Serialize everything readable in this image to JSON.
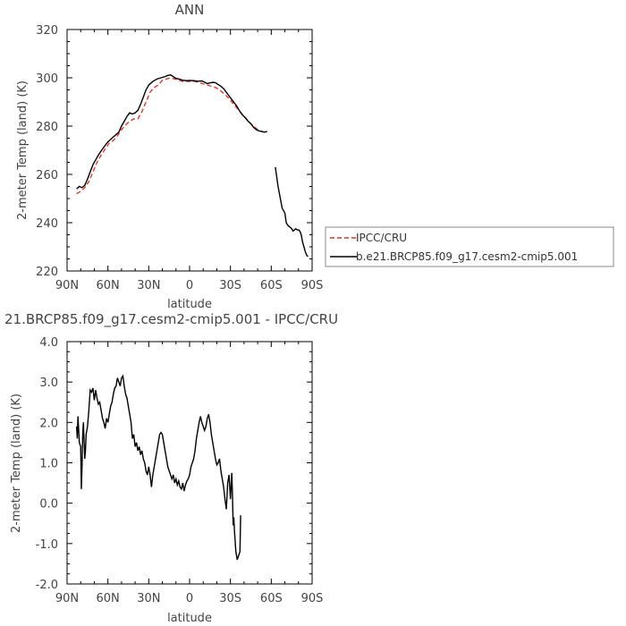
{
  "chart_data": [
    {
      "type": "line",
      "title": "ANN",
      "xlabel": "latitude",
      "ylabel": "2-meter Temp (land) (K)",
      "xlim": [
        90,
        -90
      ],
      "ylim": [
        220,
        320
      ],
      "x_ticks": [
        90,
        60,
        30,
        0,
        -30,
        -60,
        -90
      ],
      "x_tick_labels": [
        "90N",
        "60N",
        "30N",
        "0",
        "30S",
        "60S",
        "90S"
      ],
      "y_ticks": [
        220,
        240,
        260,
        280,
        300,
        320
      ],
      "y_tick_labels": [
        "220",
        "240",
        "260",
        "280",
        "300",
        "320"
      ],
      "legend": {
        "placement": "right"
      },
      "series": [
        {
          "name": "IPCC/CRU",
          "color": "#e8322b",
          "dash": "dashed",
          "points": [
            [
              83,
              252
            ],
            [
              80,
              253
            ],
            [
              77,
              254.5
            ],
            [
              74,
              257
            ],
            [
              71,
              261
            ],
            [
              68,
              265
            ],
            [
              65,
              268
            ],
            [
              62,
              270.5
            ],
            [
              59,
              273
            ],
            [
              56,
              274
            ],
            [
              53,
              276
            ],
            [
              50,
              278.5
            ],
            [
              47,
              280.5
            ],
            [
              44,
              282
            ],
            [
              41,
              283
            ],
            [
              38,
              283
            ],
            [
              35,
              286
            ],
            [
              32,
              290
            ],
            [
              29,
              294
            ],
            [
              26,
              296
            ],
            [
              23,
              297
            ],
            [
              20,
              299
            ],
            [
              17,
              299.5
            ],
            [
              14,
              300
            ],
            [
              11,
              299.5
            ],
            [
              8,
              299
            ],
            [
              5,
              298.5
            ],
            [
              2,
              298.5
            ],
            [
              -1,
              298.5
            ],
            [
              -4,
              298.5
            ],
            [
              -7,
              298
            ],
            [
              -10,
              297.5
            ],
            [
              -13,
              297
            ],
            [
              -16,
              296.5
            ],
            [
              -19,
              296
            ],
            [
              -22,
              295
            ],
            [
              -25,
              293.5
            ],
            [
              -28,
              292
            ],
            [
              -31,
              290
            ],
            [
              -34,
              288
            ],
            [
              -37,
              286
            ],
            [
              -40,
              284
            ],
            [
              -43,
              282
            ],
            [
              -46,
              280.5
            ],
            [
              -49,
              279
            ],
            [
              -52,
              278
            ],
            [
              -54,
              277.5
            ]
          ]
        },
        {
          "name": "b.e21.BRCP85.f09_g17.cesm2-cmip5.001",
          "color": "#000000",
          "dash": "solid",
          "points": [
            [
              83,
              254
            ],
            [
              81,
              255
            ],
            [
              79,
              254.5
            ],
            [
              77,
              255.5
            ],
            [
              75,
              258
            ],
            [
              73,
              261
            ],
            [
              71,
              264
            ],
            [
              69,
              266
            ],
            [
              67,
              268
            ],
            [
              64,
              270.5
            ],
            [
              62,
              272
            ],
            [
              60,
              273.5
            ],
            [
              58,
              274.5
            ],
            [
              56,
              275.5
            ],
            [
              54,
              276.5
            ],
            [
              52,
              277.5
            ],
            [
              50,
              280
            ],
            [
              48,
              282
            ],
            [
              46,
              284
            ],
            [
              44,
              285.5
            ],
            [
              42,
              285
            ],
            [
              40,
              285.5
            ],
            [
              38,
              286.5
            ],
            [
              36,
              289
            ],
            [
              34,
              292
            ],
            [
              32,
              295
            ],
            [
              30,
              297
            ],
            [
              27,
              298.5
            ],
            [
              24,
              299.5
            ],
            [
              21,
              300
            ],
            [
              18,
              300.5
            ],
            [
              16,
              301
            ],
            [
              14,
              301.2
            ],
            [
              12,
              300.5
            ],
            [
              10,
              299.8
            ],
            [
              8,
              299.5
            ],
            [
              5,
              299
            ],
            [
              2,
              298.8
            ],
            [
              0,
              298.9
            ],
            [
              -3,
              298.8
            ],
            [
              -6,
              298.6
            ],
            [
              -9,
              298.7
            ],
            [
              -11,
              298.2
            ],
            [
              -13,
              297.6
            ],
            [
              -15,
              297.9
            ],
            [
              -17,
              298.1
            ],
            [
              -19,
              298
            ],
            [
              -21,
              297.2
            ],
            [
              -23,
              296.5
            ],
            [
              -25,
              295.5
            ],
            [
              -27,
              294
            ],
            [
              -29,
              292.5
            ],
            [
              -31,
              291
            ],
            [
              -33,
              289.5
            ],
            [
              -35,
              288
            ],
            [
              -37,
              286
            ],
            [
              -39,
              284.5
            ],
            [
              -41,
              283.5
            ],
            [
              -43,
              282
            ],
            [
              -45,
              281
            ],
            [
              -47,
              279.5
            ],
            [
              -49,
              278.5
            ],
            [
              -51,
              278
            ],
            [
              -53,
              277.8
            ],
            [
              -55,
              277.5
            ],
            [
              -57,
              277.8
            ]
          ]
        },
        {
          "name": "",
          "color": "#000000",
          "dash": "solid",
          "legend": false,
          "points": [
            [
              -63,
              263
            ],
            [
              -64,
              259
            ],
            [
              -65,
              255
            ],
            [
              -66,
              252
            ],
            [
              -67,
              249
            ],
            [
              -68,
              246
            ],
            [
              -69,
              245
            ],
            [
              -70,
              244
            ],
            [
              -71,
              240
            ],
            [
              -72,
              239
            ],
            [
              -73,
              238.5
            ],
            [
              -74,
              238
            ],
            [
              -75,
              237.5
            ],
            [
              -76,
              236.5
            ],
            [
              -77,
              237
            ],
            [
              -78,
              237.5
            ],
            [
              -79,
              237
            ],
            [
              -80,
              237
            ],
            [
              -81,
              236.5
            ],
            [
              -82,
              235
            ],
            [
              -83,
              232
            ],
            [
              -84,
              230
            ],
            [
              -85,
              228
            ],
            [
              -86,
              226.5
            ],
            [
              -87,
              226
            ]
          ]
        }
      ]
    },
    {
      "type": "line",
      "title": "21.BRCP85.f09_g17.cesm2-cmip5.001 - IPCC/CRU",
      "xlabel": "latitude",
      "ylabel": "2-meter Temp (land) (K)",
      "xlim": [
        90,
        -90
      ],
      "ylim": [
        -2.0,
        4.0
      ],
      "x_ticks": [
        90,
        60,
        30,
        0,
        -30,
        -60,
        -90
      ],
      "x_tick_labels": [
        "90N",
        "60N",
        "30N",
        "0",
        "30S",
        "60S",
        "90S"
      ],
      "y_ticks": [
        -2,
        -1,
        0,
        1,
        2,
        3,
        4
      ],
      "y_tick_labels": [
        "-2.0",
        "-1.0",
        "0.0",
        "1.0",
        "2.0",
        "3.0",
        "4.0"
      ],
      "series": [
        {
          "name": "",
          "color": "#000000",
          "dash": "solid",
          "points": [
            [
              83,
              1.9
            ],
            [
              82.5,
              1.6
            ],
            [
              82,
              2.15
            ],
            [
              81,
              1.5
            ],
            [
              80,
              1.4
            ],
            [
              79.5,
              0.35
            ],
            [
              79,
              0.9
            ],
            [
              78.5,
              1.7
            ],
            [
              78,
              2.0
            ],
            [
              77,
              1.1
            ],
            [
              76.5,
              1.3
            ],
            [
              76,
              1.7
            ],
            [
              75,
              1.9
            ],
            [
              74,
              2.3
            ],
            [
              73,
              2.8
            ],
            [
              72,
              2.75
            ],
            [
              71,
              2.85
            ],
            [
              70,
              2.55
            ],
            [
              69,
              2.8
            ],
            [
              68,
              2.6
            ],
            [
              67,
              2.45
            ],
            [
              66,
              2.5
            ],
            [
              65,
              2.3
            ],
            [
              64,
              2.1
            ],
            [
              63,
              2.0
            ],
            [
              62,
              1.85
            ],
            [
              61,
              2.1
            ],
            [
              60,
              2.0
            ],
            [
              59,
              2.2
            ],
            [
              58,
              2.4
            ],
            [
              57,
              2.5
            ],
            [
              56,
              2.7
            ],
            [
              55,
              2.85
            ],
            [
              54,
              2.9
            ],
            [
              53,
              3.1
            ],
            [
              52,
              3.0
            ],
            [
              51,
              2.9
            ],
            [
              50,
              3.1
            ],
            [
              49,
              3.15
            ],
            [
              48,
              2.9
            ],
            [
              47,
              2.7
            ],
            [
              46,
              2.6
            ],
            [
              45,
              2.4
            ],
            [
              44,
              2.2
            ],
            [
              43,
              2.0
            ],
            [
              42,
              1.6
            ],
            [
              41,
              1.7
            ],
            [
              40,
              1.4
            ],
            [
              39,
              1.5
            ],
            [
              38,
              1.3
            ],
            [
              37,
              1.4
            ],
            [
              36,
              1.2
            ],
            [
              35,
              1.3
            ],
            [
              34,
              1.1
            ],
            [
              33,
              1.0
            ],
            [
              32,
              0.8
            ],
            [
              31,
              0.7
            ],
            [
              30,
              0.9
            ],
            [
              29,
              0.7
            ],
            [
              28,
              0.4
            ],
            [
              27,
              0.7
            ],
            [
              26,
              0.9
            ],
            [
              25,
              1.1
            ],
            [
              24,
              1.3
            ],
            [
              23,
              1.5
            ],
            [
              22,
              1.7
            ],
            [
              21,
              1.75
            ],
            [
              20,
              1.7
            ],
            [
              19,
              1.5
            ],
            [
              18,
              1.3
            ],
            [
              17,
              1.1
            ],
            [
              16,
              0.9
            ],
            [
              15,
              0.8
            ],
            [
              14,
              0.7
            ],
            [
              13,
              0.6
            ],
            [
              12,
              0.7
            ],
            [
              11,
              0.5
            ],
            [
              10,
              0.6
            ],
            [
              9,
              0.45
            ],
            [
              8,
              0.55
            ],
            [
              7,
              0.4
            ],
            [
              6,
              0.35
            ],
            [
              5,
              0.5
            ],
            [
              4,
              0.3
            ],
            [
              3,
              0.45
            ],
            [
              2,
              0.55
            ],
            [
              1,
              0.6
            ],
            [
              0,
              0.7
            ],
            [
              -1,
              0.9
            ],
            [
              -2,
              1.0
            ],
            [
              -3,
              1.1
            ],
            [
              -4,
              1.3
            ],
            [
              -5,
              1.6
            ],
            [
              -6,
              1.8
            ],
            [
              -7,
              2.0
            ],
            [
              -8,
              2.15
            ],
            [
              -9,
              2.0
            ],
            [
              -10,
              1.9
            ],
            [
              -11,
              1.8
            ],
            [
              -12,
              1.9
            ],
            [
              -13,
              2.1
            ],
            [
              -14,
              2.2
            ],
            [
              -15,
              2.0
            ],
            [
              -16,
              1.7
            ],
            [
              -17,
              1.5
            ],
            [
              -18,
              1.3
            ],
            [
              -19,
              1.1
            ],
            [
              -20,
              0.95
            ],
            [
              -21,
              1.0
            ],
            [
              -22,
              1.1
            ],
            [
              -23,
              0.8
            ],
            [
              -24,
              0.6
            ],
            [
              -25,
              0.4
            ],
            [
              -26,
              0.1
            ],
            [
              -27,
              -0.15
            ],
            [
              -28,
              0.5
            ],
            [
              -29,
              0.7
            ],
            [
              -30,
              0.1
            ],
            [
              -31,
              0.75
            ],
            [
              -31.5,
              0.2
            ],
            [
              -32,
              -0.55
            ],
            [
              -32.5,
              -0.35
            ],
            [
              -33,
              -0.7
            ],
            [
              -34,
              -1.2
            ],
            [
              -35,
              -1.4
            ],
            [
              -36,
              -1.3
            ],
            [
              -37,
              -1.2
            ],
            [
              -37.5,
              -0.3
            ]
          ]
        }
      ]
    }
  ]
}
